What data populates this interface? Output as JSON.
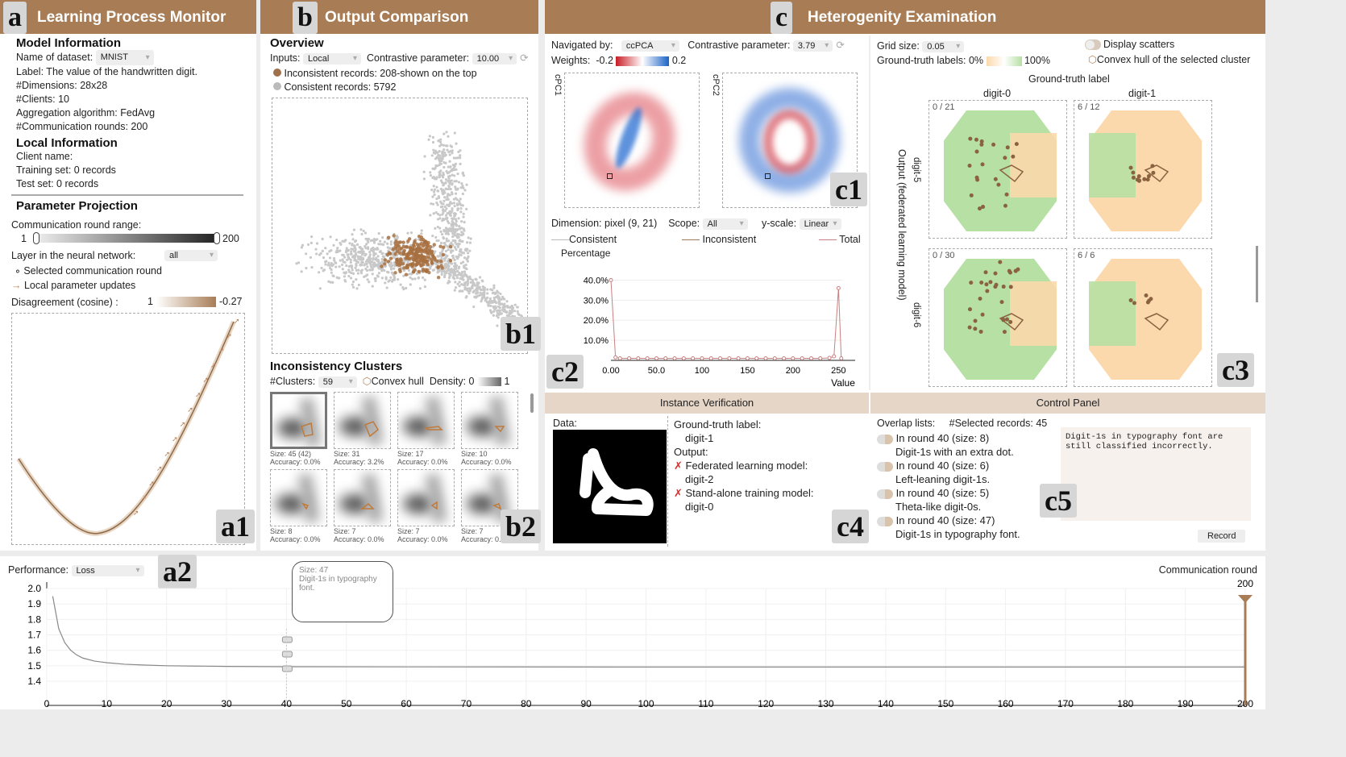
{
  "colors": {
    "header": "#a87d56",
    "accent": "#b8835a",
    "sub_header": "#e5d6c7",
    "green": "#b7e0a4",
    "orange": "#fbd9ac"
  },
  "panel_a": {
    "tag": "a",
    "title": "Learning Process Monitor",
    "model_info": {
      "heading": "Model Information",
      "dataset_label": "Name of dataset:",
      "dataset_value": "MNIST",
      "label": "Label: The value of the handwritten digit.",
      "dimensions": "#Dimensions: 28x28",
      "clients": "#Clients: 10",
      "aggregation": "Aggregation algorithm: FedAvg",
      "rounds": "#Communication rounds: 200"
    },
    "local_info": {
      "heading": "Local Information",
      "client": "Client name:",
      "training": "Training set: 0 records",
      "test": "Test set: 0 records"
    },
    "projection": {
      "heading": "Parameter Projection",
      "range_label": "Communication round range:",
      "range_min": "1",
      "range_max": "200",
      "range_value": [
        1,
        200
      ],
      "layer_label": "Layer in the neural network:",
      "layer_value": "all",
      "legend_selected": "Selected communication round",
      "legend_updates": "Local parameter updates",
      "disagreement_label": "Disagreement (cosine) :",
      "disagreement_min": "1",
      "disagreement_max": "-0.27"
    },
    "a1_tag": "a1"
  },
  "panel_b": {
    "tag": "b",
    "title": "Output Comparison",
    "overview": {
      "heading": "Overview",
      "inputs_label": "Inputs:",
      "inputs_value": "Local",
      "contrastive_label": "Contrastive parameter:",
      "contrastive_value": "10.00",
      "legend_inconsistent": "Inconsistent records: 208-shown on the top",
      "legend_consistent": "Consistent records: 5792"
    },
    "b1_tag": "b1",
    "clusters": {
      "heading": "Inconsistency Clusters",
      "count_label": "#Clusters:",
      "count_value": "59",
      "hull_label": "Convex hull",
      "density_label": "Density: 0",
      "density_max": "1",
      "items": [
        {
          "size": "Size: 45 (42)",
          "accuracy": "Accuracy: 0.0%"
        },
        {
          "size": "Size: 31",
          "accuracy": "Accuracy: 3.2%"
        },
        {
          "size": "Size: 17",
          "accuracy": "Accuracy: 0.0%"
        },
        {
          "size": "Size: 10",
          "accuracy": "Accuracy: 0.0%"
        },
        {
          "size": "Size: 8",
          "accuracy": "Accuracy: 0.0%"
        },
        {
          "size": "Size: 7",
          "accuracy": "Accuracy: 0.0%"
        },
        {
          "size": "Size: 7",
          "accuracy": "Accuracy: 0.0%"
        },
        {
          "size": "Size: 7",
          "accuracy": "Accuracy: 0.0%"
        }
      ]
    },
    "b2_tag": "b2"
  },
  "panel_c": {
    "tag": "c",
    "title": "Heterogenity Examination",
    "c1": {
      "navigated_label": "Navigated by:",
      "navigated_value": "ccPCA",
      "contrastive_label": "Contrastive parameter:",
      "contrastive_value": "3.79",
      "weights_label": "Weights:",
      "weights_min": "-0.2",
      "weights_max": "0.2",
      "pc1": "cPC1",
      "pc2": "cPC2",
      "tag": "c1"
    },
    "c2": {
      "dimension": "Dimension: pixel (9, 21)",
      "scope_label": "Scope:",
      "scope_value": "All",
      "yscale_label": "y-scale:",
      "yscale_value": "Linear",
      "legend": [
        "Consistent",
        "Inconsistent",
        "Total"
      ],
      "tag": "c2"
    },
    "c3": {
      "grid_label": "Grid size:",
      "grid_value": "0.05",
      "gt_label": "Ground-truth labels: 0%",
      "gt_max": "100%",
      "scatter_toggle": "Display scatters",
      "hull_label": "Convex hull of the selected cluster",
      "col_title": "Ground-truth label",
      "cols": [
        "digit-0",
        "digit-1"
      ],
      "row_title": "Output (federated learning model)",
      "rows": [
        "digit-5",
        "digit-6"
      ],
      "cells": [
        "0 / 21",
        "6 / 12",
        "0 / 30",
        "6 / 6"
      ],
      "tag": "c3"
    },
    "c4": {
      "title": "Instance Verification",
      "data_label": "Data:",
      "gt_label": "Ground-truth label:",
      "gt_value": "digit-1",
      "output_label": "Output:",
      "fl_label": "Federated learning model:",
      "fl_value": "digit-2",
      "sa_label": "Stand-alone training model:",
      "sa_value": "digit-0",
      "tag": "c4"
    },
    "c5": {
      "title": "Control Panel",
      "overlap_label": "Overlap lists:",
      "selected_label": "#Selected records: 45",
      "items": [
        {
          "round": "In round 40 (size: 8)",
          "desc": "Digit-1s with an extra dot."
        },
        {
          "round": "In round 40 (size: 6)",
          "desc": "Left-leaning digit-1s."
        },
        {
          "round": "In round 40 (size: 5)",
          "desc": "Theta-like digit-0s."
        },
        {
          "round": "In round 40 (size: 47)",
          "desc": "Digit-1s in typography font."
        }
      ],
      "note": "Digit-1s in typography font are still classified incorrectly.",
      "record_button": "Record",
      "tag": "c5"
    }
  },
  "panel_a2": {
    "perf_label": "Performance:",
    "perf_value": "Loss",
    "tag": "a2",
    "xlabel": "Communication round",
    "marker": "200",
    "tooltip_size": "Size: 47",
    "tooltip_text": "Digit-1s in typography font."
  },
  "chart_data": [
    {
      "id": "c2",
      "type": "line",
      "ylabel": "Percentage",
      "xlabel": "Value",
      "xlim": [
        0,
        255
      ],
      "ylim": [
        0,
        45
      ],
      "x_ticks": [
        "0.00",
        "50.0",
        "100",
        "150",
        "200",
        "250"
      ],
      "y_ticks": [
        "10.0%",
        "20.0%",
        "30.0%",
        "40.0%"
      ],
      "series": [
        {
          "name": "Total",
          "x": [
            0,
            5,
            10,
            20,
            30,
            40,
            50,
            60,
            70,
            80,
            90,
            100,
            110,
            120,
            130,
            140,
            150,
            160,
            170,
            180,
            190,
            200,
            210,
            220,
            230,
            240,
            245,
            250,
            253
          ],
          "y": [
            40,
            1.5,
            1,
            1,
            1,
            1,
            1,
            1,
            1,
            1,
            1,
            1,
            1,
            1,
            1,
            1,
            1,
            1,
            1,
            1,
            1,
            1,
            1,
            1,
            1,
            1.2,
            2,
            36,
            1
          ]
        }
      ]
    },
    {
      "id": "a2",
      "type": "line",
      "xlabel": "Communication round",
      "ylabel": "",
      "xlim": [
        0,
        200
      ],
      "ylim": [
        1.4,
        2.0
      ],
      "x_ticks": [
        "0",
        "10",
        "20",
        "30",
        "40",
        "50",
        "60",
        "70",
        "80",
        "90",
        "100",
        "110",
        "120",
        "130",
        "140",
        "150",
        "160",
        "170",
        "180",
        "190",
        "200"
      ],
      "y_ticks": [
        "1.4",
        "1.5",
        "1.6",
        "1.7",
        "1.8",
        "1.9",
        "2.0"
      ],
      "series": [
        {
          "x": [
            1,
            2,
            3,
            4,
            5,
            6,
            8,
            10,
            13,
            16,
            20,
            25,
            30,
            40,
            60,
            100,
            150,
            200
          ],
          "y": [
            1.95,
            1.74,
            1.65,
            1.6,
            1.57,
            1.55,
            1.53,
            1.52,
            1.51,
            1.505,
            1.5,
            1.498,
            1.496,
            1.494,
            1.493,
            1.492,
            1.492,
            1.492
          ]
        }
      ]
    }
  ]
}
